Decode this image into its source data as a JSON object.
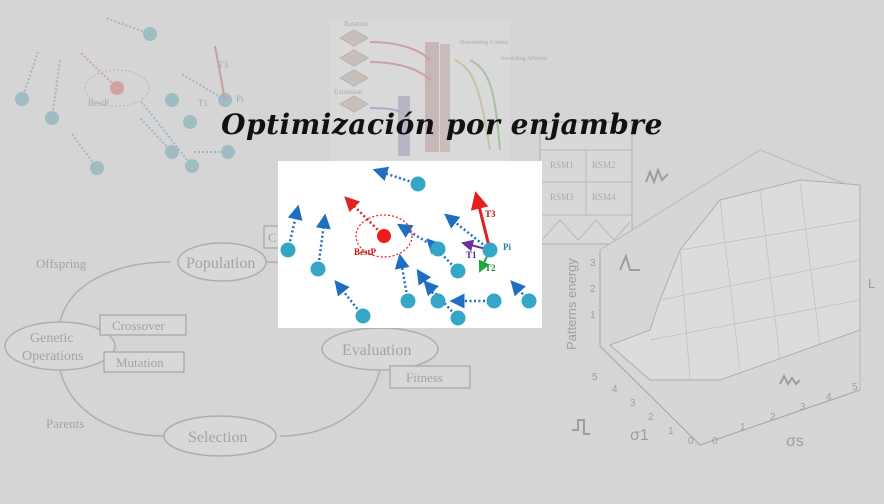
{
  "title": "Optimización por enjambre",
  "background": {
    "genetic_cycle": {
      "nodes": [
        "Population",
        "Evaluation",
        "Selection",
        "Genetic Operations"
      ],
      "edge_labels": [
        "Offspring",
        "Parents"
      ],
      "boxes": [
        "Crossover",
        "Mutation",
        "Fitness"
      ],
      "partial_box": "C"
    },
    "swarm_sketch": {
      "labels": [
        "BestP",
        "T3",
        "T1",
        "Pi"
      ]
    },
    "neural_diagram": {
      "labels": [
        "Rotation",
        "Extension",
        "Descending Control",
        "Ascending Afferent"
      ]
    },
    "rsm_grid": {
      "cells": [
        "RSM1",
        "RSM2",
        "RSM3",
        "RSM4"
      ]
    },
    "surface_plot": {
      "zlabel": "Patterns energy",
      "xlabel": "σ1",
      "ylabel": "σs",
      "z_ticks": [
        "1",
        "2",
        "3"
      ],
      "x_ticks": [
        "0",
        "1",
        "2",
        "3",
        "4",
        "5"
      ],
      "y_ticks": [
        "0",
        "1",
        "2",
        "3",
        "4",
        "5"
      ],
      "axis_letter": "L"
    }
  },
  "inset": {
    "labels": {
      "best": "BestP",
      "t1": "T1",
      "t2": "T2",
      "t3": "T3",
      "pi": "Pi"
    },
    "colors": {
      "particle": "#35a6c6",
      "arrow": "#1f6fc0",
      "best": "#ee1b1b",
      "t1": "#7030a0",
      "t2": "#22a640",
      "t3": "#e32020"
    }
  }
}
